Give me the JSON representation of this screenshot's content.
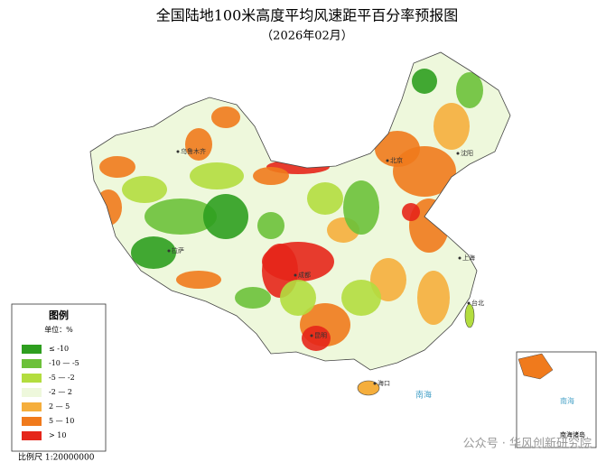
{
  "header": {
    "title": "全国陆地100米高度平均风速距平百分率预报图",
    "subtitle": "（2026年02月）"
  },
  "legend": {
    "title": "图例",
    "unit": "单位：%",
    "items": [
      {
        "label": "≤ -10",
        "color": "#2e9e1f"
      },
      {
        "label": "-10 — -5",
        "color": "#6cc13a"
      },
      {
        "label": "-5 — -2",
        "color": "#b3dd3f"
      },
      {
        "label": "-2 — 2",
        "color": "#eef8dc"
      },
      {
        "label": "2 — 5",
        "color": "#f5ae3c"
      },
      {
        "label": "5 — 10",
        "color": "#f07a1c"
      },
      {
        "label": "> 10",
        "color": "#e5261a"
      }
    ]
  },
  "cities": [
    "北京",
    "沈阳",
    "上海",
    "成都",
    "昆明",
    "台北",
    "海口",
    "乌鲁木齐",
    "拉萨"
  ],
  "inset": {
    "title": "南海诸岛",
    "sea": "南海"
  },
  "map_sea": "南海",
  "scale": "比例尺 1:20000000",
  "watermark": "公众号 · 华风创新研究院"
}
